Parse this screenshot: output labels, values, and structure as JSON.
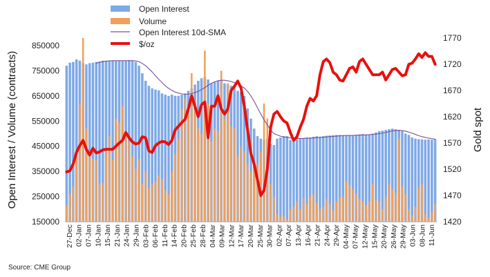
{
  "chart_data": {
    "type": "bar",
    "ylabel": "Open Interest / Volume (contracts)",
    "y2label": "Gold spot",
    "source": "Source: CME Group",
    "legend_placement": "top-left",
    "ylim": [
      150000,
      880000
    ],
    "y2lim": [
      1420,
      1770
    ],
    "y_ticks": [
      "150000",
      "250000",
      "350000",
      "450000",
      "550000",
      "650000",
      "750000",
      "850000"
    ],
    "y2_ticks": [
      "1420",
      "1470",
      "1520",
      "1570",
      "1620",
      "1670",
      "1720",
      "1770"
    ],
    "x_tick_labels": [
      "27-Dec",
      "02-Jan",
      "07-Jan",
      "10-Jan",
      "15-Jan",
      "21-Jan",
      "24-Jan",
      "29-Jan",
      "03-Feb",
      "06-Feb",
      "11-Feb",
      "14-Feb",
      "20-Feb",
      "25-Feb",
      "28-Feb",
      "04-Mar",
      "09-Mar",
      "12-Mar",
      "17-Mar",
      "20-Mar",
      "25-Mar",
      "30-Mar",
      "02-Apr",
      "07-Apr",
      "13-Apr",
      "16-Apr",
      "21-Apr",
      "24-Apr",
      "29-Apr",
      "04-May",
      "07-May",
      "12-May",
      "15-May",
      "20-May",
      "26-May",
      "29-May",
      "03-Jun",
      "08-Jun",
      "11-Jun"
    ],
    "series": [
      {
        "name": "Open Interest",
        "kind": "bar",
        "color": "#7fa9e6",
        "axis": "left",
        "values": [
          770000,
          782000,
          785000,
          795000,
          790000,
          780000,
          775000,
          780000,
          782000,
          785000,
          787000,
          790000,
          790000,
          790000,
          790000,
          788000,
          790000,
          788000,
          790000,
          792000,
          790000,
          785000,
          770000,
          740000,
          710000,
          690000,
          680000,
          675000,
          672000,
          660000,
          655000,
          650000,
          655000,
          650000,
          650000,
          655000,
          660000,
          670000,
          680000,
          695000,
          710000,
          720000,
          725000,
          715000,
          700000,
          705000,
          710000,
          712000,
          700000,
          695000,
          690000,
          685000,
          670000,
          665000,
          650000,
          600000,
          560000,
          520000,
          490000,
          480000,
          475000,
          480000,
          460000,
          455000,
          480000,
          485000,
          490000,
          490000,
          475000,
          470000,
          478000,
          480000,
          482000,
          485000,
          485000,
          488000,
          490000,
          488000,
          490000,
          492000,
          493000,
          494000,
          495000,
          495000,
          494000,
          493000,
          492000,
          494000,
          495000,
          497000,
          498000,
          495000,
          497000,
          500000,
          505000,
          510000,
          512000,
          515000,
          518000,
          520000,
          518000,
          515000,
          510000,
          500000,
          495000,
          485000,
          480000,
          478000,
          477000,
          476000,
          477000,
          476000,
          478000
        ]
      },
      {
        "name": "Volume",
        "kind": "bar",
        "color": "#f0a05a",
        "axis": "left",
        "values": [
          215000,
          260000,
          290000,
          430000,
          620000,
          880000,
          520000,
          420000,
          400000,
          395000,
          300000,
          305000,
          430000,
          490000,
          395000,
          560000,
          545000,
          610000,
          510000,
          470000,
          410000,
          360000,
          400000,
          300000,
          350000,
          285000,
          300000,
          310000,
          335000,
          320000,
          275000,
          260000,
          350000,
          420000,
          480000,
          595000,
          640000,
          580000,
          740000,
          600000,
          520000,
          500000,
          830000,
          620000,
          470000,
          520000,
          510000,
          750000,
          560000,
          700000,
          530000,
          520000,
          410000,
          450000,
          430000,
          380000,
          350000,
          360000,
          380000,
          430000,
          620000,
          560000,
          300000,
          250000,
          180000,
          170000,
          175000,
          160000,
          200000,
          210000,
          230000,
          200000,
          245000,
          220000,
          250000,
          260000,
          225000,
          200000,
          210000,
          240000,
          220000,
          195000,
          230000,
          245000,
          250000,
          310000,
          295000,
          280000,
          260000,
          240000,
          230000,
          215000,
          230000,
          300000,
          240000,
          230000,
          200000,
          250000,
          300000,
          280000,
          265000,
          480000,
          290000,
          260000,
          200000,
          175000,
          210000,
          285000,
          300000,
          180000,
          165000,
          190000,
          220000
        ]
      },
      {
        "name": "Open Interest 10d-SMA",
        "kind": "line",
        "color": "#7b4c9c",
        "axis": "left",
        "values": [
          null,
          null,
          null,
          null,
          null,
          null,
          null,
          null,
          null,
          780000,
          783000,
          786000,
          788000,
          789000,
          790000,
          790000,
          790000,
          790000,
          790000,
          790000,
          790000,
          789000,
          786000,
          779000,
          770000,
          758000,
          745000,
          730000,
          716000,
          703000,
          690000,
          680000,
          672000,
          665000,
          661000,
          658000,
          656000,
          657000,
          659000,
          663000,
          668000,
          675000,
          683000,
          692000,
          700000,
          706000,
          710000,
          712000,
          712000,
          710000,
          707000,
          703000,
          697000,
          690000,
          681000,
          668000,
          650000,
          628000,
          603000,
          578000,
          555000,
          535000,
          515000,
          500000,
          495000,
          490000,
          487000,
          485000,
          483000,
          482000,
          481000,
          481000,
          481000,
          482000,
          482000,
          483000,
          484000,
          485000,
          486000,
          487000,
          488000,
          489000,
          490000,
          491000,
          492000,
          493000,
          493000,
          493000,
          494000,
          494000,
          495000,
          495000,
          496000,
          497000,
          498000,
          500000,
          502000,
          505000,
          508000,
          511000,
          512000,
          513000,
          512000,
          510000,
          506000,
          502000,
          497000,
          492000,
          488000,
          485000,
          482000,
          480000,
          478000
        ]
      },
      {
        "name": "$/oz",
        "kind": "line",
        "color": "#e8100c",
        "axis": "right",
        "values": [
          1515,
          1517,
          1530,
          1552,
          1565,
          1575,
          1558,
          1547,
          1560,
          1551,
          1553,
          1557,
          1558,
          1558,
          1558,
          1564,
          1570,
          1575,
          1590,
          1580,
          1572,
          1568,
          1570,
          1582,
          1580,
          1555,
          1552,
          1565,
          1570,
          1573,
          1572,
          1567,
          1575,
          1595,
          1602,
          1609,
          1615,
          1635,
          1660,
          1640,
          1620,
          1643,
          1648,
          1580,
          1640,
          1640,
          1660,
          1635,
          1625,
          1635,
          1670,
          1678,
          1688,
          1675,
          1640,
          1595,
          1550,
          1530,
          1500,
          1470,
          1480,
          1520,
          1600,
          1625,
          1630,
          1620,
          1612,
          1608,
          1590,
          1575,
          1582,
          1600,
          1615,
          1640,
          1655,
          1650,
          1660,
          1700,
          1725,
          1730,
          1723,
          1705,
          1700,
          1690,
          1688,
          1700,
          1712,
          1715,
          1705,
          1725,
          1730,
          1720,
          1710,
          1700,
          1700,
          1700,
          1705,
          1690,
          1700,
          1710,
          1712,
          1705,
          1698,
          1700,
          1720,
          1722,
          1730,
          1740,
          1733,
          1742,
          1735,
          1735,
          1720
        ]
      }
    ]
  }
}
